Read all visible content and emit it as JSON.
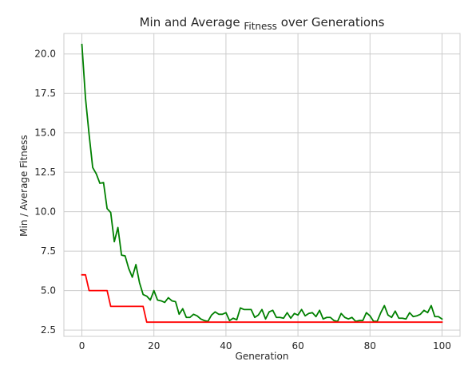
{
  "chart_data": {
    "type": "line",
    "title_main": "Min and Average",
    "title_sub": "Fitness",
    "title_tail": "over Generations",
    "xlabel": "Generation",
    "ylabel": "Min / Average Fitness",
    "xlim": [
      -5,
      105
    ],
    "ylim": [
      2.1,
      21.3
    ],
    "grid": true,
    "x_ticks": [
      0,
      20,
      40,
      60,
      80,
      100
    ],
    "x_tick_labels": [
      "0",
      "20",
      "40",
      "60",
      "80",
      "100"
    ],
    "y_ticks": [
      2.5,
      5.0,
      7.5,
      10.0,
      12.5,
      15.0,
      17.5,
      20.0
    ],
    "y_tick_labels": [
      "2.5",
      "5.0",
      "7.5",
      "10.0",
      "12.5",
      "15.0",
      "17.5",
      "20.0"
    ],
    "x": [
      0,
      1,
      2,
      3,
      4,
      5,
      6,
      7,
      8,
      9,
      10,
      11,
      12,
      13,
      14,
      15,
      16,
      17,
      18,
      19,
      20,
      21,
      22,
      23,
      24,
      25,
      26,
      27,
      28,
      29,
      30,
      31,
      32,
      33,
      34,
      35,
      36,
      37,
      38,
      39,
      40,
      41,
      42,
      43,
      44,
      45,
      46,
      47,
      48,
      49,
      50,
      51,
      52,
      53,
      54,
      55,
      56,
      57,
      58,
      59,
      60,
      61,
      62,
      63,
      64,
      65,
      66,
      67,
      68,
      69,
      70,
      71,
      72,
      73,
      74,
      75,
      76,
      77,
      78,
      79,
      80,
      81,
      82,
      83,
      84,
      85,
      86,
      87,
      88,
      89,
      90,
      91,
      92,
      93,
      94,
      95,
      96,
      97,
      98,
      99,
      100
    ],
    "series": [
      {
        "color": "#008000",
        "values": [
          20.6,
          17.2,
          14.9,
          12.8,
          12.4,
          11.8,
          11.85,
          10.2,
          9.95,
          8.1,
          9.0,
          7.25,
          7.2,
          6.4,
          5.85,
          6.65,
          5.5,
          4.75,
          4.65,
          4.4,
          5.0,
          4.4,
          4.35,
          4.25,
          4.55,
          4.35,
          4.3,
          3.5,
          3.85,
          3.3,
          3.3,
          3.5,
          3.4,
          3.2,
          3.1,
          3.05,
          3.45,
          3.65,
          3.5,
          3.5,
          3.6,
          3.1,
          3.25,
          3.15,
          3.9,
          3.8,
          3.8,
          3.8,
          3.3,
          3.45,
          3.8,
          3.2,
          3.65,
          3.75,
          3.3,
          3.3,
          3.25,
          3.6,
          3.25,
          3.55,
          3.45,
          3.8,
          3.4,
          3.55,
          3.6,
          3.35,
          3.75,
          3.2,
          3.3,
          3.3,
          3.1,
          3.05,
          3.55,
          3.3,
          3.2,
          3.3,
          3.05,
          3.1,
          3.1,
          3.6,
          3.4,
          3.05,
          3.05,
          3.6,
          4.05,
          3.45,
          3.3,
          3.7,
          3.25,
          3.25,
          3.2,
          3.6,
          3.35,
          3.4,
          3.5,
          3.75,
          3.6,
          4.05,
          3.35,
          3.35,
          3.2
        ]
      },
      {
        "color": "#ff0000",
        "values": [
          6,
          6,
          5,
          5,
          5,
          5,
          5,
          5,
          4,
          4,
          4,
          4,
          4,
          4,
          4,
          4,
          4,
          4,
          3,
          3,
          3,
          3,
          3,
          3,
          3,
          3,
          3,
          3,
          3,
          3,
          3,
          3,
          3,
          3,
          3,
          3,
          3,
          3,
          3,
          3,
          3,
          3,
          3,
          3,
          3,
          3,
          3,
          3,
          3,
          3,
          3,
          3,
          3,
          3,
          3,
          3,
          3,
          3,
          3,
          3,
          3,
          3,
          3,
          3,
          3,
          3,
          3,
          3,
          3,
          3,
          3,
          3,
          3,
          3,
          3,
          3,
          3,
          3,
          3,
          3,
          3,
          3,
          3,
          3,
          3,
          3,
          3,
          3,
          3,
          3,
          3,
          3,
          3,
          3,
          3,
          3,
          3,
          3,
          3,
          3,
          3
        ]
      }
    ]
  }
}
